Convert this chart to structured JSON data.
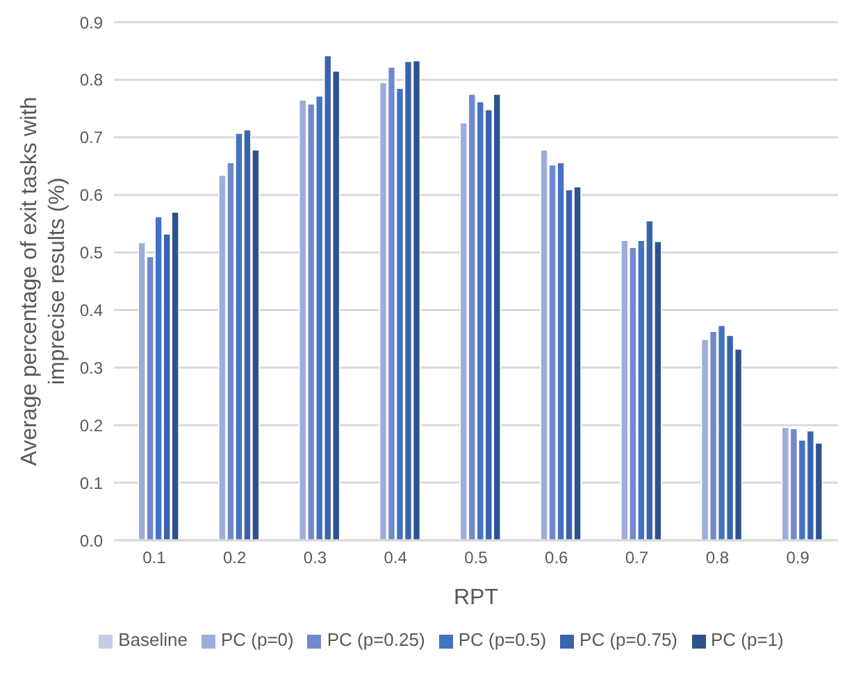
{
  "chart_data": {
    "type": "bar",
    "xlabel": "RPT",
    "ylabel": "Average percentage of exit tasks with imprecise results (%)",
    "categories": [
      "0.1",
      "0.2",
      "0.3",
      "0.4",
      "0.5",
      "0.6",
      "0.7",
      "0.8",
      "0.9"
    ],
    "series": [
      {
        "name": "Baseline",
        "color": "#c5cde8",
        "values": [
          null,
          null,
          null,
          null,
          null,
          null,
          null,
          null,
          null
        ]
      },
      {
        "name": "PC (p=0)",
        "color": "#9dadd9",
        "values": [
          0.517,
          0.634,
          0.765,
          0.795,
          0.725,
          0.678,
          0.521,
          0.349,
          0.196
        ]
      },
      {
        "name": "PC (p=0.25)",
        "color": "#7189cc",
        "values": [
          0.493,
          0.656,
          0.758,
          0.822,
          0.775,
          0.652,
          0.509,
          0.363,
          0.194
        ]
      },
      {
        "name": "PC (p=0.5)",
        "color": "#4472c4",
        "values": [
          0.562,
          0.707,
          0.772,
          0.785,
          0.762,
          0.656,
          0.521,
          0.373,
          0.174
        ]
      },
      {
        "name": "PC (p=0.75)",
        "color": "#3a63ad",
        "values": [
          0.532,
          0.713,
          0.842,
          0.832,
          0.748,
          0.609,
          0.555,
          0.356,
          0.19
        ]
      },
      {
        "name": "PC (p=1)",
        "color": "#2f528f",
        "values": [
          0.57,
          0.678,
          0.815,
          0.833,
          0.775,
          0.614,
          0.519,
          0.332,
          0.169
        ]
      }
    ],
    "ylim": [
      0,
      0.9
    ],
    "yticks": [
      {
        "value": 0,
        "label": "0.0"
      },
      0.1,
      0.2,
      0.3,
      0.4,
      0.5,
      0.6,
      0.7,
      0.8,
      0.9
    ],
    "grid": "y",
    "legend": "bottom"
  }
}
